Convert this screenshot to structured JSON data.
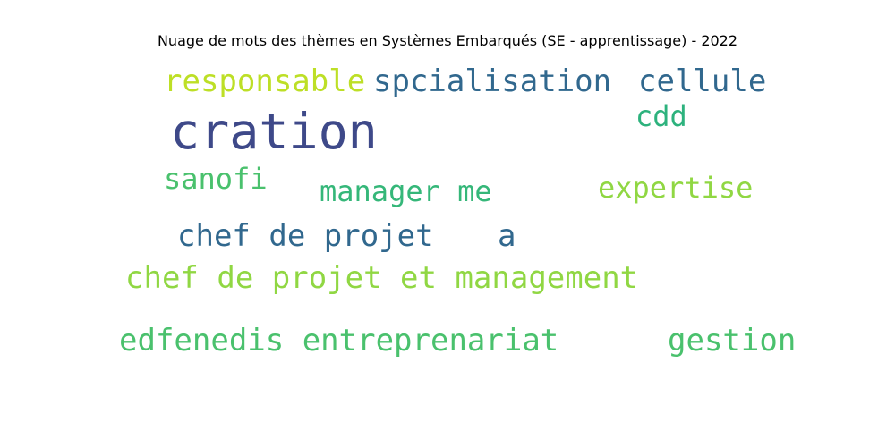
{
  "title": "Nuage de mots des thèmes en Systèmes Embarqués (SE - apprentissage) - 2022",
  "words": [
    {
      "text": "responsable",
      "color": "#bddf26"
    },
    {
      "text": "spcialisation",
      "color": "#31688e"
    },
    {
      "text": "cellule",
      "color": "#31688e"
    },
    {
      "text": "cration",
      "color": "#3e4989"
    },
    {
      "text": "cdd",
      "color": "#2db27d"
    },
    {
      "text": "sanofi",
      "color": "#4ac16d"
    },
    {
      "text": "manager me",
      "color": "#35b779"
    },
    {
      "text": "expertise",
      "color": "#90d743"
    },
    {
      "text": "chef de projet",
      "color": "#31688e"
    },
    {
      "text": "a",
      "color": "#31688e"
    },
    {
      "text": "chef de projet et management",
      "color": "#90d743"
    },
    {
      "text": "edfenedis entreprenariat",
      "color": "#4ac16d"
    },
    {
      "text": "gestion",
      "color": "#4ac16d"
    }
  ]
}
